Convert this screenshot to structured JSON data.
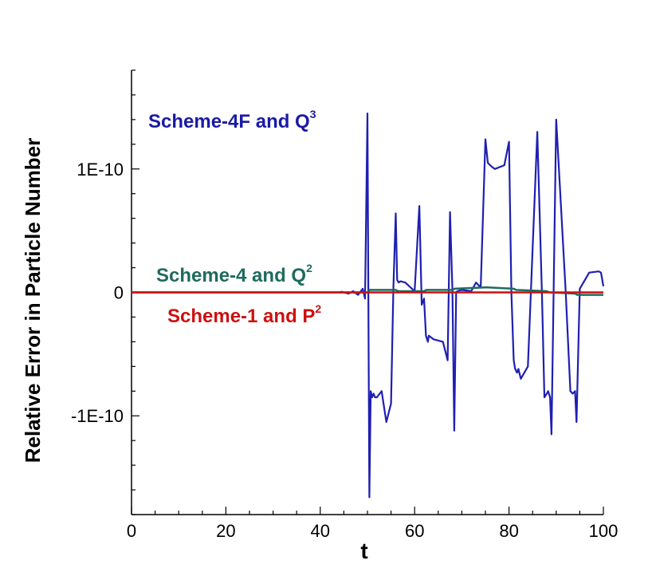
{
  "chart_data": {
    "type": "line",
    "xlabel": "t",
    "ylabel": "Relative Error in Particle Number",
    "xlim": [
      0,
      100
    ],
    "ylim": [
      -1.8e-10,
      1.8e-10
    ],
    "x_ticks": [
      0,
      20,
      40,
      60,
      80,
      100
    ],
    "x_tick_labels": [
      "0",
      "20",
      "40",
      "60",
      "80",
      "100"
    ],
    "y_ticks": [
      1e-10,
      0,
      -1e-10
    ],
    "y_tick_labels": [
      "1E-10",
      "0",
      "-1E-10"
    ],
    "grid": false,
    "annotations": [
      {
        "text": "Scheme-4F and Q",
        "sup": "3",
        "color": "#1a1aa6",
        "series": "blue"
      },
      {
        "text": "Scheme-4 and Q",
        "sup": "2",
        "color": "#1f6b5e",
        "series": "green"
      },
      {
        "text": "Scheme-1 and P",
        "sup": "2",
        "color": "#cc1111",
        "series": "red"
      }
    ],
    "series": [
      {
        "color": "#cc1111",
        "x": [
          0,
          100
        ],
        "y": [
          0,
          0
        ]
      },
      {
        "color": "#1f6b5e",
        "x": [
          0,
          45,
          50,
          50.5,
          56,
          56.5,
          62,
          62.5,
          68,
          68.5,
          75,
          75.5,
          81,
          81.5,
          88,
          88.5,
          94,
          94.5,
          100
        ],
        "y": [
          0,
          0,
          0,
          2e-12,
          2e-12,
          1e-12,
          1e-12,
          2e-12,
          2e-12,
          3e-12,
          4e-12,
          4e-12,
          3e-12,
          2e-12,
          1e-12,
          0,
          -1e-12,
          -2e-12,
          -2e-12
        ]
      },
      {
        "color": "#1f1fb0",
        "x": [
          0,
          10,
          20,
          30,
          40,
          44,
          44.5,
          45,
          46,
          47,
          48,
          49,
          49.5,
          50,
          50.4,
          50.7,
          51,
          51.3,
          51.6,
          52,
          53,
          54,
          55,
          55.5,
          56,
          56.3,
          56.6,
          57,
          58,
          60,
          61,
          61.5,
          62,
          62.4,
          62.8,
          63,
          64,
          66,
          67,
          67.5,
          68,
          68.4,
          68.8,
          69,
          70,
          72,
          73,
          74,
          75,
          75.5,
          76,
          76.3,
          77,
          79,
          80,
          80.5,
          81,
          81.3,
          81.7,
          82,
          82.5,
          84,
          86,
          87,
          87.5,
          88,
          88.3,
          88.7,
          89,
          90,
          92,
          93,
          93.5,
          94,
          94.3,
          95,
          97,
          99,
          99.5,
          100
        ],
        "y": [
          0,
          0,
          0,
          0,
          0,
          0,
          5e-13,
          0,
          -1e-12,
          1e-12,
          -2e-12,
          3e-12,
          -5e-12,
          1.45e-10,
          -1.66e-10,
          -8e-11,
          -8.5e-11,
          -8.2e-11,
          -8.5e-11,
          -8.5e-11,
          -8e-11,
          -1.05e-10,
          -9e-11,
          5e-12,
          6.4e-11,
          1e-11,
          8e-12,
          9e-12,
          8e-12,
          1e-12,
          7e-11,
          -1e-11,
          -5e-12,
          -3.5e-11,
          -4e-11,
          -3.5e-11,
          -3.8e-11,
          -4e-11,
          -5.5e-11,
          6.5e-11,
          2e-12,
          -1.12e-10,
          -2e-13,
          1e-12,
          2e-12,
          1e-12,
          8e-12,
          4e-12,
          1.24e-10,
          1.05e-10,
          1.03e-10,
          1.02e-10,
          1e-10,
          1.03e-10,
          1.22e-10,
          -5e-13,
          -5.5e-11,
          -6.2e-11,
          -6.5e-11,
          -6.2e-11,
          -7e-11,
          -6e-11,
          1.3e-10,
          -3e-12,
          -8.5e-11,
          -8.2e-11,
          -8e-11,
          -8.5e-11,
          -1.15e-10,
          1.4e-10,
          2e-12,
          -8e-11,
          -8.2e-11,
          -8e-11,
          -1.05e-10,
          3e-12,
          1.6e-11,
          1.7e-11,
          1.6e-11,
          5e-12
        ]
      }
    ]
  }
}
